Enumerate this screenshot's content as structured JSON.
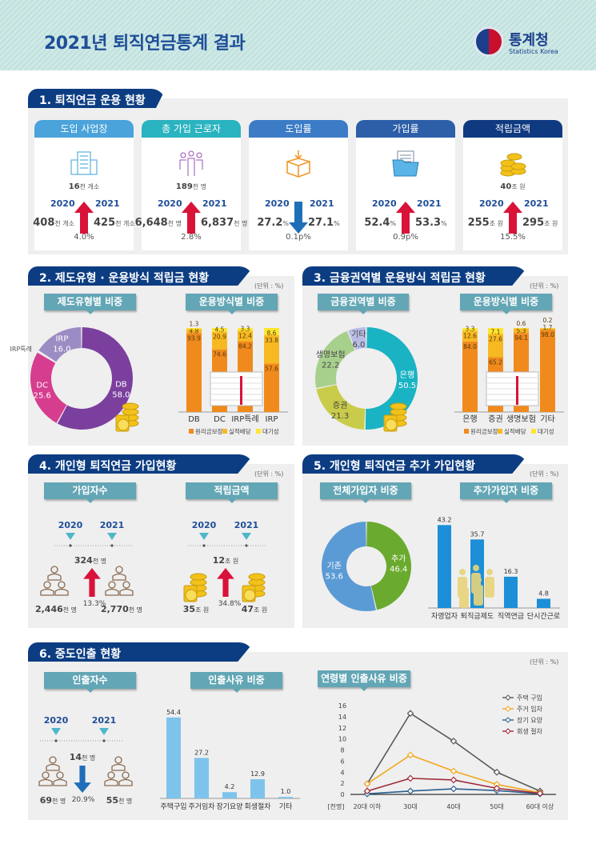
{
  "header": {
    "title": "2021년 퇴직연금통계 결과",
    "logo_name": "통계청",
    "logo_sub": "Statistics Korea"
  },
  "unit_label": "(단위 : %)",
  "colors": {
    "navy": "#0c3d82",
    "teal_sub": "#63a6b5",
    "up_arrow": "#d9123a",
    "down_arrow": "#1e6fb8"
  },
  "s1": {
    "title": "1. 퇴직연금 운용 현황",
    "year1": "2020",
    "year2": "2021",
    "cards": [
      {
        "label": "도입 사업장",
        "color": "#4aa3da",
        "icon": "building-icon",
        "total": "16",
        "total_unit": "천 개소",
        "v1": "408",
        "u1": "천 개소",
        "v2": "425",
        "u2": "천 개소",
        "direction": "up",
        "change": "4.0%"
      },
      {
        "label": "총 가입 근로자",
        "color": "#2ab3c0",
        "icon": "people-icon",
        "total": "189",
        "total_unit": "천 명",
        "v1": "6,648",
        "u1": "천 명",
        "v2": "6,837",
        "u2": "천 명",
        "direction": "up",
        "change": "2.8%"
      },
      {
        "label": "도입률",
        "color": "#3c7cc6",
        "icon": "box-icon",
        "total": "",
        "total_unit": "",
        "v1": "27.2",
        "u1": "%",
        "v2": "27.1",
        "u2": "%",
        "direction": "down",
        "change": "0.1p%"
      },
      {
        "label": "가입률",
        "color": "#2c5fa8",
        "icon": "folder-icon",
        "total": "",
        "total_unit": "",
        "v1": "52.4",
        "u1": "%",
        "v2": "53.3",
        "u2": "%",
        "direction": "up",
        "change": "0.9p%"
      },
      {
        "label": "적립금액",
        "color": "#0f3a80",
        "icon": "coins-icon",
        "total": "40",
        "total_unit": "조 원",
        "v1": "255",
        "u1": "조 원",
        "v2": "295",
        "u2": "조 원",
        "direction": "up",
        "change": "15.5%"
      }
    ]
  },
  "s2": {
    "title": "2. 제도유형 · 운용방식 적립금 현황",
    "sub1": "제도유형별 비중",
    "sub2": "운용방식별 비중"
  },
  "s3": {
    "title": "3. 금융권역별 운용방식 적립금 현황",
    "sub1": "금융권역별 비중",
    "sub2": "운용방식별 비중"
  },
  "s4": {
    "title": "4. 개인형 퇴직연금 가입현황",
    "sub1": "가입자수",
    "sub2": "적립금액",
    "year1": "2020",
    "year2": "2021",
    "members": {
      "v1": "2,446",
      "v2": "2,770",
      "unit": "천 명",
      "diff": "324",
      "diff_unit": "천 명",
      "change": "13.3%",
      "direction": "up"
    },
    "amount": {
      "v1": "35",
      "v2": "47",
      "unit": "조 원",
      "diff": "12",
      "diff_unit": "조 원",
      "change": "34.8%",
      "direction": "up"
    }
  },
  "s5": {
    "title": "5. 개인형 퇴직연금 추가 가입현황",
    "sub1": "전체가입자 비중",
    "sub2": "추가가입자 비중"
  },
  "s6": {
    "title": "6. 중도인출 현황",
    "sub1": "인출자수",
    "sub2": "인출사유 비중",
    "sub3": "연령별 인출사유 비중",
    "year1": "2020",
    "year2": "2021",
    "withdrawers": {
      "v1": "69",
      "v2": "55",
      "unit": "천 명",
      "diff": "14",
      "diff_unit": "천 명",
      "change": "20.9%",
      "direction": "down"
    }
  },
  "chart_data": [
    {
      "type": "pie",
      "title": "제도유형별 비중",
      "labels": [
        "DB",
        "DC",
        "IRP특례",
        "IRP"
      ],
      "values": [
        58.0,
        25.6,
        0.4,
        16.0
      ],
      "colors": [
        "#7b3f9e",
        "#d63d8f",
        "#d8d0e8",
        "#9c8cc4"
      ]
    },
    {
      "type": "bar",
      "stacked": true,
      "title": "운용방식별 비중",
      "categories": [
        "DB",
        "DC",
        "IRP특례",
        "IRP"
      ],
      "series": [
        {
          "name": "원리금보장",
          "values": [
            93.9,
            74.6,
            84.2,
            57.6
          ],
          "color": "#f08a1c"
        },
        {
          "name": "실적배당",
          "values": [
            4.8,
            20.9,
            12.4,
            33.8
          ],
          "color": "#f7b921"
        },
        {
          "name": "대기성",
          "values": [
            1.3,
            4.5,
            3.3,
            8.6
          ],
          "color": "#fde62f"
        }
      ],
      "ylim": [
        0,
        100
      ],
      "legend": "bottom"
    },
    {
      "type": "pie",
      "title": "금융권역별 비중",
      "labels": [
        "은행",
        "증권",
        "생명보험",
        "기타"
      ],
      "values": [
        50.5,
        21.3,
        22.2,
        6.0
      ],
      "colors": [
        "#1ab3c4",
        "#c9cc4a",
        "#a8d08d",
        "#b9bde6"
      ]
    },
    {
      "type": "bar",
      "stacked": true,
      "title": "운용방식별 비중",
      "categories": [
        "은행",
        "증권",
        "생명보험",
        "기타"
      ],
      "series": [
        {
          "name": "원리금보장",
          "values": [
            84.0,
            65.2,
            94.1,
            98.0
          ],
          "color": "#f08a1c"
        },
        {
          "name": "실적배당",
          "values": [
            12.6,
            27.6,
            5.3,
            1.7
          ],
          "color": "#f7b921"
        },
        {
          "name": "대기성",
          "values": [
            3.3,
            7.1,
            0.6,
            0.2
          ],
          "color": "#fde62f"
        }
      ],
      "ylim": [
        0,
        100
      ],
      "legend": "bottom"
    },
    {
      "type": "pie",
      "title": "전체가입자 비중",
      "labels": [
        "추가",
        "기존"
      ],
      "values": [
        46.4,
        53.6
      ],
      "colors": [
        "#6aaa2e",
        "#5b9bd5"
      ]
    },
    {
      "type": "bar",
      "title": "추가가입자 비중",
      "categories": [
        "자영업자",
        "퇴직금제도",
        "직역연금",
        "단시간근로"
      ],
      "values": [
        43.2,
        35.7,
        16.3,
        4.8
      ],
      "color": "#1c8fd8"
    },
    {
      "type": "bar",
      "title": "인출사유 비중",
      "categories": [
        "주택구입",
        "주거임차",
        "장기요양",
        "회생절차",
        "기타"
      ],
      "values": [
        54.4,
        27.2,
        4.2,
        12.9,
        1.0
      ],
      "color": "#7ec3ec"
    },
    {
      "type": "line",
      "title": "연령별 인출사유 비중",
      "ylabel": "[천명]",
      "x": [
        "20대 이하",
        "30대",
        "40대",
        "50대",
        "60대 이상"
      ],
      "yticks": [
        "0",
        "2",
        "4",
        "6",
        "8",
        "10",
        "12",
        "14",
        "16"
      ],
      "ylim": [
        0,
        16
      ],
      "legend": "top-right",
      "series": [
        {
          "name": "주택 구입",
          "values": [
            1.9,
            14.6,
            9.6,
            4.0,
            0.6
          ],
          "color": "#595959"
        },
        {
          "name": "주거 임차",
          "values": [
            1.9,
            7.1,
            4.2,
            1.8,
            0.3
          ],
          "color": "#f2a71b"
        },
        {
          "name": "장기 요양",
          "values": [
            0.1,
            0.6,
            1.0,
            0.7,
            0.1
          ],
          "color": "#2a5f8f"
        },
        {
          "name": "회생 절차",
          "values": [
            0.6,
            2.9,
            2.6,
            1.1,
            0.2
          ],
          "color": "#a02a3a"
        }
      ]
    }
  ]
}
